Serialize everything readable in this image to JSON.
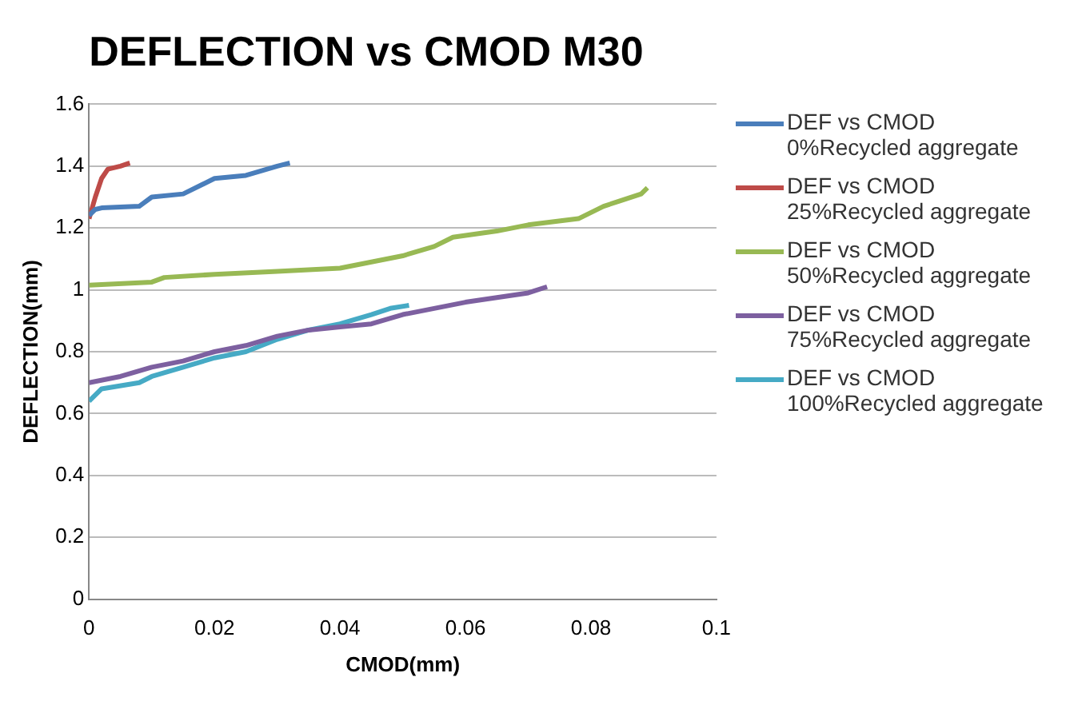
{
  "chart_data": {
    "type": "line",
    "title": "DEFLECTION vs CMOD M30",
    "xlabel": "CMOD(mm)",
    "ylabel": "DEFLECTION(mm)",
    "xlim": [
      0,
      0.1
    ],
    "xticks": [
      0,
      0.02,
      0.04,
      0.06,
      0.08,
      0.1
    ],
    "ylim": [
      0,
      1.6
    ],
    "yticks": [
      0,
      0.2,
      0.4,
      0.6,
      0.8,
      1,
      1.2,
      1.4,
      1.6
    ],
    "grid": "y",
    "legend": "right",
    "marker": "none",
    "series": [
      {
        "name": "DEF vs CMOD 0%Recycled aggregate",
        "color": "#4a7ebb",
        "x": [
          0,
          0.001,
          0.002,
          0.008,
          0.01,
          0.015,
          0.018,
          0.02,
          0.025,
          0.03,
          0.032
        ],
        "values": [
          1.24,
          1.26,
          1.265,
          1.27,
          1.3,
          1.31,
          1.34,
          1.36,
          1.37,
          1.4,
          1.41
        ]
      },
      {
        "name": "DEF vs CMOD 25%Recycled aggregate",
        "color": "#be4b48",
        "x": [
          0,
          0.001,
          0.002,
          0.003,
          0.005,
          0.0065
        ],
        "values": [
          1.23,
          1.3,
          1.36,
          1.39,
          1.4,
          1.41
        ]
      },
      {
        "name": "DEF vs CMOD 50%Recycled aggregate",
        "color": "#98b954",
        "x": [
          0,
          0.01,
          0.012,
          0.02,
          0.03,
          0.04,
          0.045,
          0.05,
          0.055,
          0.058,
          0.065,
          0.07,
          0.078,
          0.082,
          0.088,
          0.089
        ],
        "values": [
          1.015,
          1.025,
          1.04,
          1.05,
          1.06,
          1.07,
          1.09,
          1.11,
          1.14,
          1.17,
          1.19,
          1.21,
          1.23,
          1.27,
          1.31,
          1.33
        ]
      },
      {
        "name": "DEF vs CMOD 75%Recycled aggregate",
        "color": "#7d60a0",
        "x": [
          0,
          0.005,
          0.01,
          0.015,
          0.02,
          0.025,
          0.03,
          0.035,
          0.04,
          0.045,
          0.05,
          0.06,
          0.07,
          0.073
        ],
        "values": [
          0.7,
          0.72,
          0.75,
          0.77,
          0.8,
          0.82,
          0.85,
          0.87,
          0.88,
          0.89,
          0.92,
          0.96,
          0.99,
          1.01
        ]
      },
      {
        "name": "DEF vs CMOD 100%Recycled aggregate",
        "color": "#46aac5",
        "x": [
          0,
          0.002,
          0.008,
          0.01,
          0.015,
          0.02,
          0.025,
          0.03,
          0.035,
          0.04,
          0.045,
          0.048,
          0.051
        ],
        "values": [
          0.64,
          0.68,
          0.7,
          0.72,
          0.75,
          0.78,
          0.8,
          0.84,
          0.87,
          0.89,
          0.92,
          0.94,
          0.95
        ]
      }
    ]
  }
}
